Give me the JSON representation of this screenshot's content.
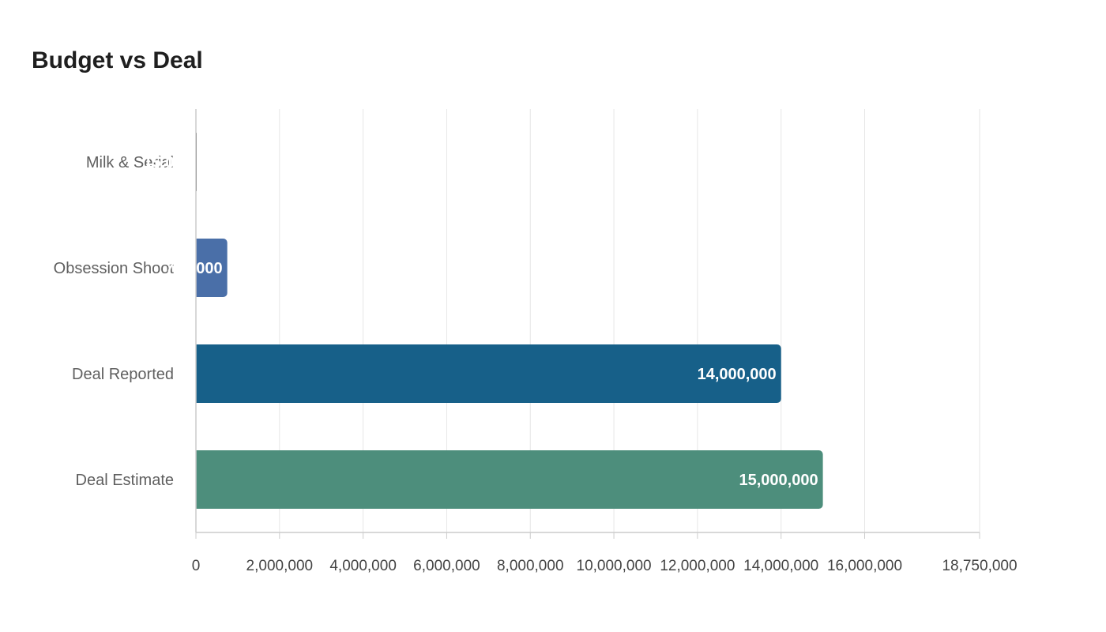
{
  "chart_data": {
    "type": "bar",
    "orientation": "horizontal",
    "title": "Budget vs Deal",
    "xlabel": "",
    "ylabel": "",
    "categories": [
      "Milk & Serial",
      "Obsession Shoot",
      "Deal Reported",
      "Deal Estimate"
    ],
    "values": [
      15000,
      750000,
      14000000,
      15000000
    ],
    "colors": [
      "#1b1b1b",
      "#4a6fa8",
      "#176089",
      "#4d8e7c"
    ],
    "xlim": [
      0,
      18750000
    ],
    "xticks": [
      0,
      2000000,
      4000000,
      6000000,
      8000000,
      10000000,
      12000000,
      14000000,
      16000000,
      18750000
    ],
    "xtick_labels": [
      "0",
      "2,000,000",
      "4,000,000",
      "6,000,000",
      "8,000,000",
      "10,000,000",
      "12,000,000",
      "14,000,000",
      "16,000,000",
      "18,750,000"
    ],
    "grid": true,
    "legend": "none",
    "data_labels": "inside-end"
  }
}
